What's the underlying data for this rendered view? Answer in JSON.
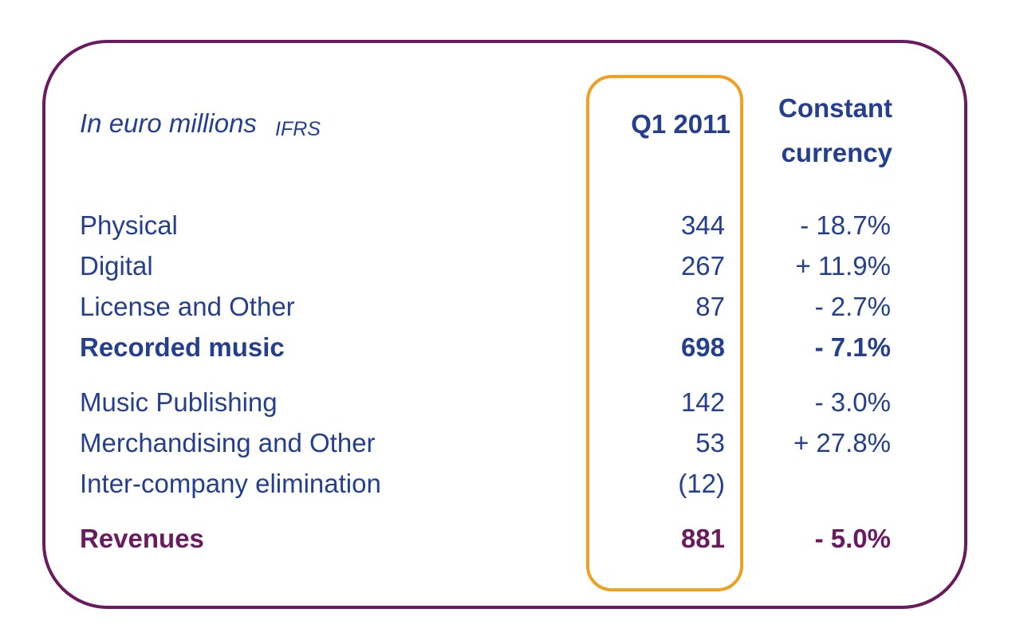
{
  "header": {
    "units": "In euro millions",
    "standard": "IFRS",
    "period": "Q1 2011",
    "change_line1": "Constant",
    "change_line2": "currency"
  },
  "rows": [
    {
      "label": "Physical",
      "value": "344",
      "change": "- 18.7%"
    },
    {
      "label": "Digital",
      "value": "267",
      "change": "+ 11.9%"
    },
    {
      "label": "License and Other",
      "value": "87",
      "change": "- 2.7%"
    },
    {
      "label": "Recorded music",
      "value": "698",
      "change": "- 7.1%"
    },
    {
      "label": "Music Publishing",
      "value": "142",
      "change": "- 3.0%"
    },
    {
      "label": "Merchandising and Other",
      "value": "53",
      "change": "+ 27.8%"
    },
    {
      "label": "Inter-company elimination",
      "value": "(12)",
      "change": ""
    },
    {
      "label": "Revenues",
      "value": "881",
      "change": "- 5.0%"
    }
  ],
  "colors": {
    "text": "#243f8f",
    "accent": "#6a1a5e",
    "highlight": "#f0a020"
  }
}
